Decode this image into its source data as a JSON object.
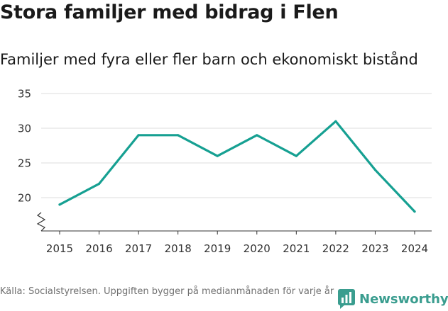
{
  "title": "Stora familjer med bidrag i Flen",
  "subtitle": "Familjer med fyra eller fler barn och ekonomiskt bistånd",
  "footer": {
    "source": "Källa: Socialstyrelsen. Uppgiften bygger på medianmånaden för varje år"
  },
  "brand": {
    "name": "Newsworthy",
    "logo_icon": "newsworthy-bar-logo-icon",
    "color": "#3a9d8f"
  },
  "colors": {
    "line": "#16a092",
    "grid": "#dddddd",
    "axis": "#333333"
  },
  "chart_data": {
    "type": "line",
    "title": "Stora familjer med bidrag i Flen",
    "subtitle": "Familjer med fyra eller fler barn och ekonomiskt bistånd",
    "xlabel": "",
    "ylabel": "",
    "x": [
      "2015",
      "2016",
      "2017",
      "2018",
      "2019",
      "2020",
      "2021",
      "2022",
      "2023",
      "2024"
    ],
    "series": [
      {
        "name": "Familjer",
        "values": [
          19,
          22,
          29,
          29,
          26,
          29,
          26,
          31,
          24,
          18
        ]
      }
    ],
    "yticks": [
      20,
      25,
      30,
      35
    ],
    "ylim": [
      15,
      35
    ],
    "grid": true,
    "axis_break": true,
    "legend": "none"
  }
}
